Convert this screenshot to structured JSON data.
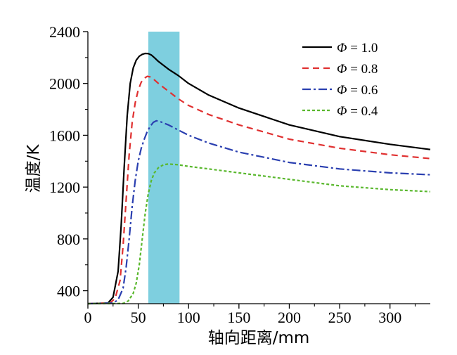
{
  "chart_data": {
    "type": "line",
    "xlabel": "轴向距离/mm",
    "ylabel": "温度/K",
    "xlim": [
      0,
      340
    ],
    "ylim": [
      300,
      2400
    ],
    "xticks": [
      0,
      50,
      100,
      150,
      200,
      250,
      300
    ],
    "yticks": [
      400,
      800,
      1200,
      1600,
      2000,
      2400
    ],
    "grid": false,
    "legend_position": "top-right",
    "highlight_band": {
      "x": [
        60,
        91
      ],
      "color": "#7ecfdf"
    },
    "series": [
      {
        "name": "Φ = 1.0",
        "legend_symbol": "Φ",
        "legend_value": "= 1.0",
        "color": "#000000",
        "dash": "solid",
        "x": [
          0,
          20,
          25,
          30,
          33,
          36,
          39,
          42,
          45,
          48,
          51,
          54,
          57,
          60,
          63,
          66,
          70,
          80,
          90,
          100,
          120,
          150,
          200,
          250,
          300,
          340
        ],
        "y": [
          300,
          305,
          350,
          550,
          900,
          1350,
          1750,
          2000,
          2120,
          2180,
          2210,
          2225,
          2232,
          2230,
          2220,
          2200,
          2170,
          2110,
          2060,
          2000,
          1910,
          1810,
          1680,
          1590,
          1530,
          1490
        ]
      },
      {
        "name": "Φ = 0.8",
        "legend_symbol": "Φ",
        "legend_value": "= 0.8",
        "color": "#e03030",
        "dash": "9,6",
        "x": [
          0,
          22,
          27,
          32,
          35,
          38,
          41,
          44,
          47,
          50,
          53,
          56,
          59,
          62,
          65,
          70,
          80,
          90,
          100,
          120,
          150,
          200,
          250,
          300,
          340
        ],
        "y": [
          300,
          305,
          340,
          480,
          750,
          1100,
          1450,
          1700,
          1850,
          1950,
          2010,
          2040,
          2055,
          2050,
          2035,
          2000,
          1940,
          1880,
          1830,
          1760,
          1680,
          1570,
          1500,
          1450,
          1420
        ]
      },
      {
        "name": "Φ = 0.6",
        "legend_symbol": "Φ",
        "legend_value": "= 0.6",
        "color": "#2a3fb0",
        "dash": "12,4,3,4",
        "x": [
          0,
          25,
          30,
          35,
          38,
          41,
          44,
          47,
          50,
          53,
          56,
          59,
          62,
          65,
          68,
          72,
          80,
          90,
          100,
          120,
          150,
          200,
          250,
          300,
          340
        ],
        "y": [
          300,
          305,
          330,
          420,
          580,
          800,
          1050,
          1250,
          1400,
          1500,
          1570,
          1630,
          1670,
          1700,
          1712,
          1705,
          1680,
          1640,
          1600,
          1540,
          1470,
          1390,
          1340,
          1310,
          1295
        ]
      },
      {
        "name": "Φ = 0.4",
        "legend_symbol": "Φ",
        "legend_value": "= 0.4",
        "color": "#5ab82e",
        "dash": "4,3",
        "x": [
          0,
          35,
          40,
          45,
          48,
          51,
          54,
          57,
          60,
          63,
          66,
          70,
          75,
          80,
          90,
          100,
          120,
          150,
          200,
          250,
          300,
          340
        ],
        "y": [
          300,
          302,
          320,
          380,
          460,
          600,
          800,
          1000,
          1150,
          1250,
          1310,
          1350,
          1372,
          1378,
          1372,
          1360,
          1340,
          1310,
          1260,
          1210,
          1180,
          1165
        ]
      }
    ]
  }
}
